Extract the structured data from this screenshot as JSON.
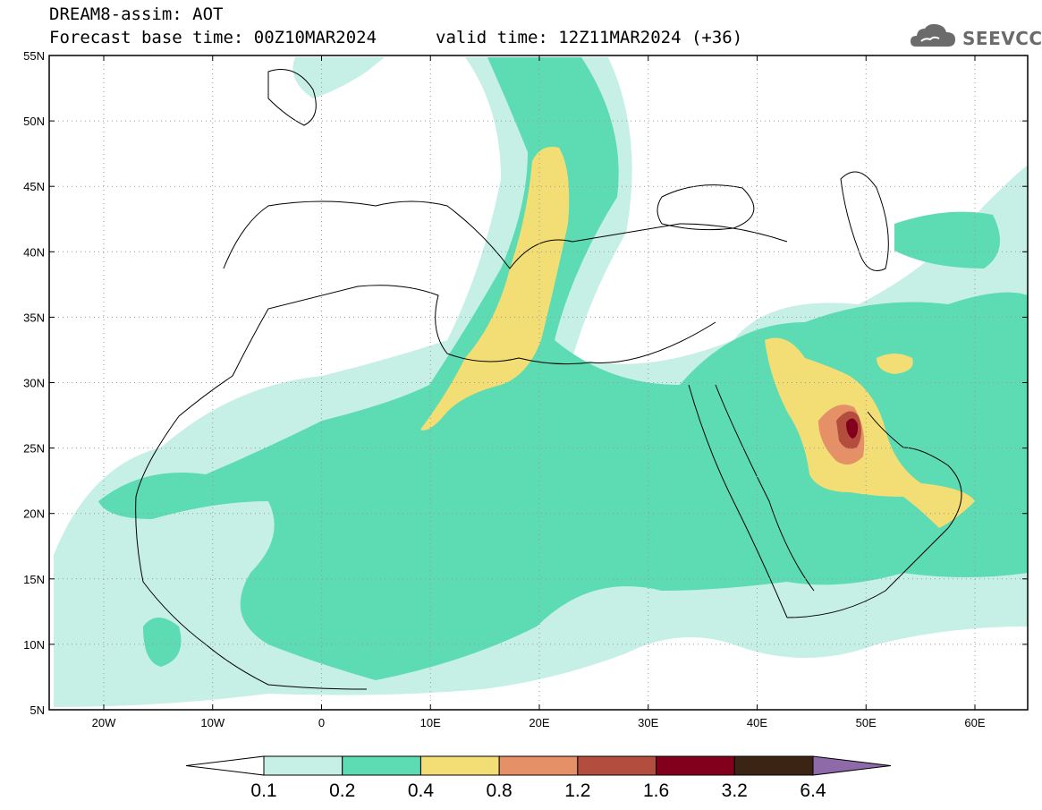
{
  "header": {
    "line1": "DREAM8-assim: AOT",
    "line2": "Forecast base time: 00Z10MAR2024",
    "valid": "valid time: 12Z11MAR2024 (+36)"
  },
  "logo": {
    "text": "SEEVCCC",
    "icon": "cloud-icon"
  },
  "axes": {
    "lat_labels": [
      "55N",
      "50N",
      "45N",
      "40N",
      "35N",
      "30N",
      "25N",
      "20N",
      "15N",
      "10N",
      "5N"
    ],
    "lon_labels": [
      "20W",
      "10W",
      "0",
      "10E",
      "20E",
      "30E",
      "40E",
      "50E",
      "60E"
    ]
  },
  "colorbar": {
    "labels": [
      "0.1",
      "0.2",
      "0.4",
      "0.8",
      "1.2",
      "1.6",
      "3.2",
      "6.4"
    ],
    "colors": [
      "#ffffff",
      "#c6efe6",
      "#5ddbb3",
      "#f3de75",
      "#e69068",
      "#b34d3d",
      "#82001c",
      "#3b2413",
      "#8e6aa8"
    ]
  },
  "legend_colors": {
    "light_teal": "#c6efe6",
    "teal": "#5ddbb3",
    "yellow": "#f3de75",
    "orange": "#e69068",
    "brown": "#b34d3d",
    "dark_red": "#82001c"
  }
}
